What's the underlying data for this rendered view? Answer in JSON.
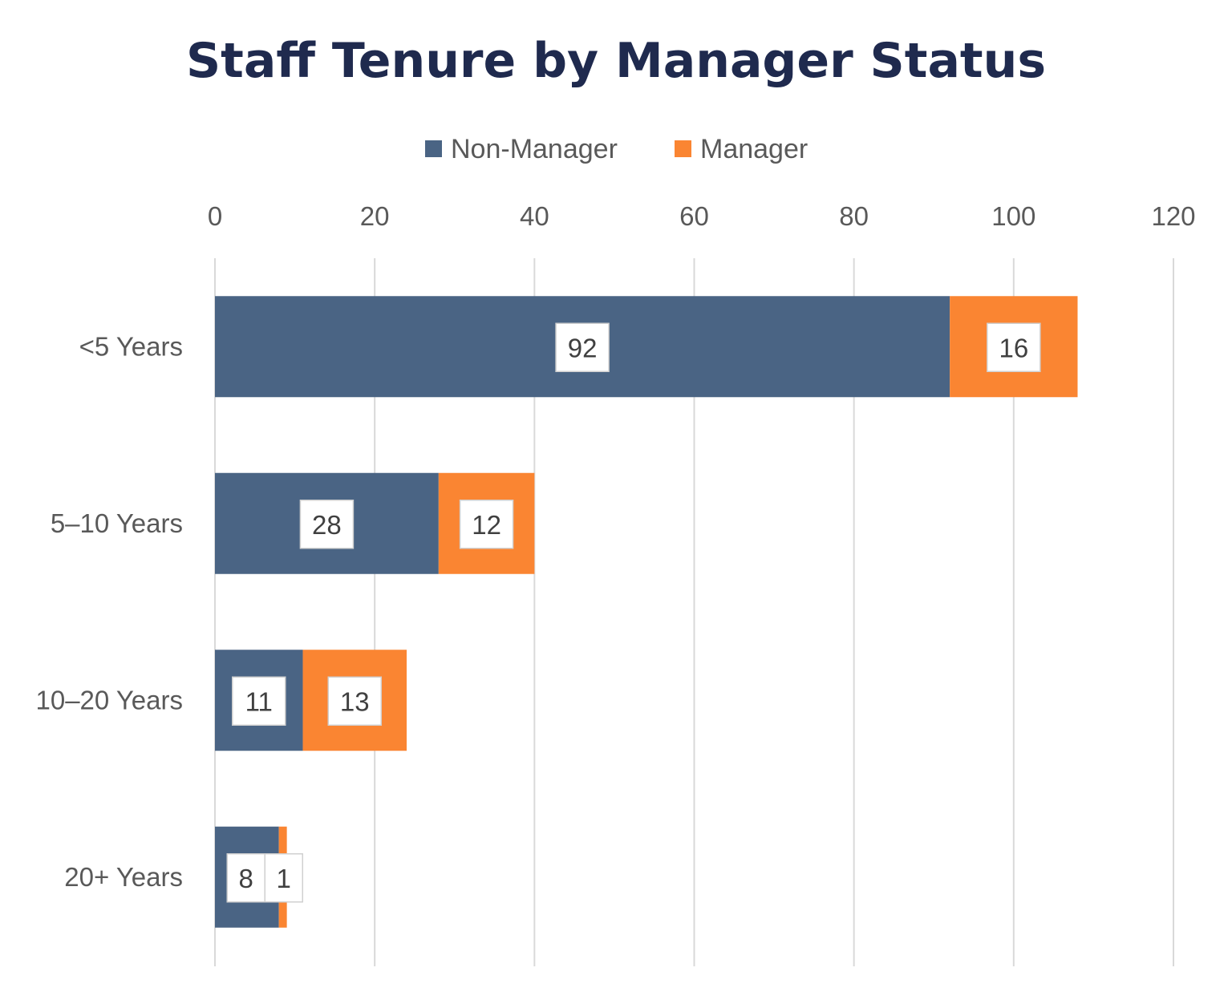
{
  "chart_data": {
    "type": "bar",
    "orientation": "horizontal",
    "stacked": true,
    "title": "Staff Tenure by Manager Status",
    "categories": [
      "<5 Years",
      "5–10 Years",
      "10–20 Years",
      "20+ Years"
    ],
    "series": [
      {
        "name": "Non-Manager",
        "values": [
          92,
          28,
          11,
          8
        ],
        "color": "#4a6484"
      },
      {
        "name": "Manager",
        "values": [
          16,
          12,
          13,
          1
        ],
        "color": "#fa8532"
      }
    ],
    "xlim": [
      0,
      120
    ],
    "xticks": [
      "0",
      "20",
      "40",
      "60",
      "80",
      "100",
      "120"
    ],
    "xaxis_position": "top",
    "legend_position": "top",
    "grid": true,
    "data_labels": true
  }
}
